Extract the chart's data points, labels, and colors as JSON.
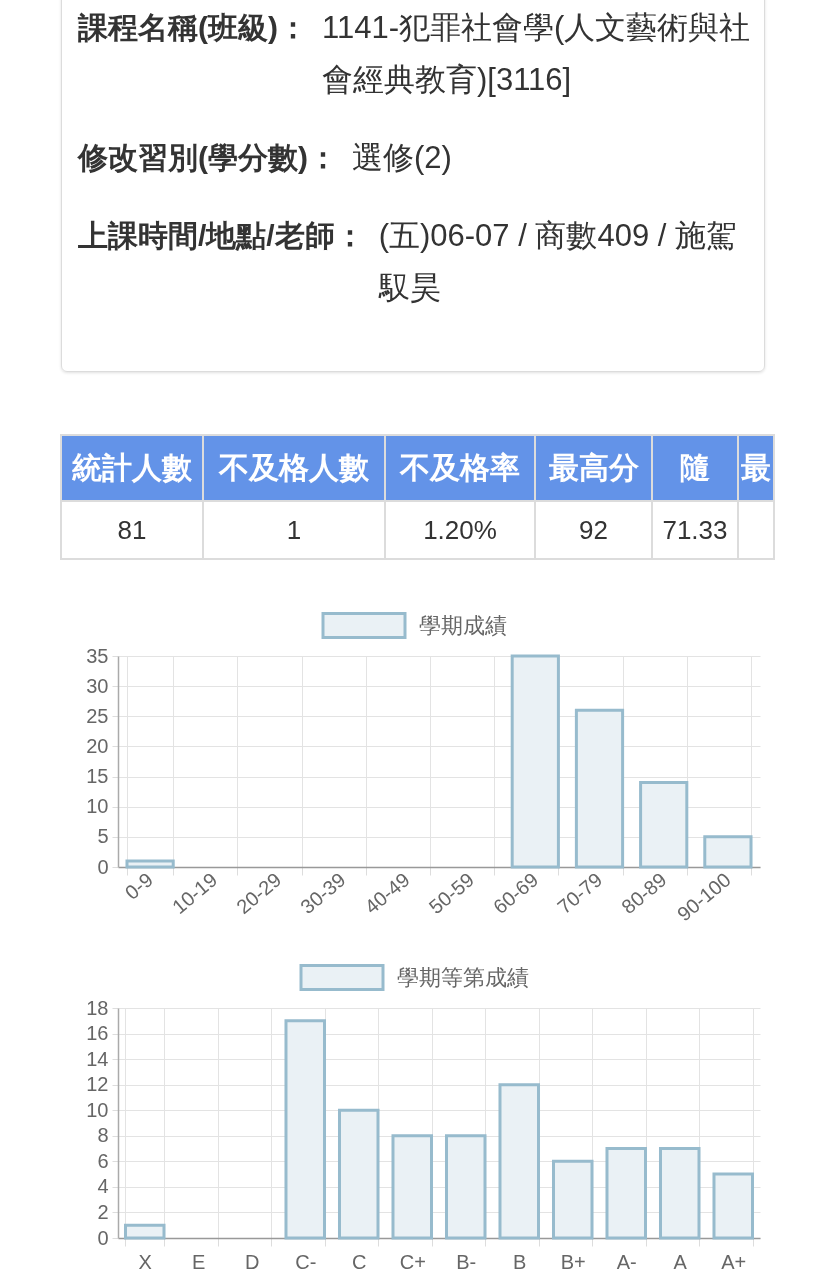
{
  "chart_data": [
    {
      "type": "other",
      "annotations": [
        "課程名稱(班級)：",
        "1141-犯罪社會學(人文藝術與社會經典教育)[3116]",
        "修改習別(學分數)：",
        "選修(2)",
        "上課時間/地點/老師：",
        "(五)06-07 / 商數409 / 施駕馭昊"
      ]
    },
    {
      "type": "other",
      "categories": [
        "統計人數",
        "不及格人數",
        "不及格率",
        "最高分",
        "隨",
        "最"
      ],
      "value_labels": [
        "81",
        "1",
        "1.20%",
        "92",
        "71.33",
        null
      ]
    },
    {
      "type": "bar",
      "categories": [
        "0-9",
        "10-19",
        "20-29",
        "30-39",
        "40-49",
        "50-59",
        "60-69",
        "70-79",
        "80-89",
        "90-100"
      ],
      "series": [
        {
          "name": "學期成績",
          "color": "#97bbcd",
          "values": [
            1,
            0,
            0,
            0,
            0,
            0,
            35,
            26,
            14,
            5
          ]
        }
      ],
      "ylim": [
        0,
        35
      ],
      "yticks": [
        0,
        5,
        10,
        15,
        20,
        25,
        30,
        35
      ],
      "grid": true,
      "legend": "top"
    },
    {
      "type": "bar",
      "categories": [
        "X",
        "E",
        "D",
        "C-",
        "C",
        "C+",
        "B-",
        "B",
        "B+",
        "A-",
        "A",
        "A+"
      ],
      "series": [
        {
          "name": "學期等第成績",
          "color": "#97bbcd",
          "values": [
            1,
            0,
            0,
            17,
            10,
            8,
            8,
            12,
            6,
            7,
            7,
            5
          ]
        }
      ],
      "ylim": [
        0,
        18
      ],
      "yticks": [
        0,
        2,
        4,
        6,
        8,
        10,
        12,
        14,
        16,
        18
      ],
      "grid": true,
      "legend": "top"
    }
  ]
}
